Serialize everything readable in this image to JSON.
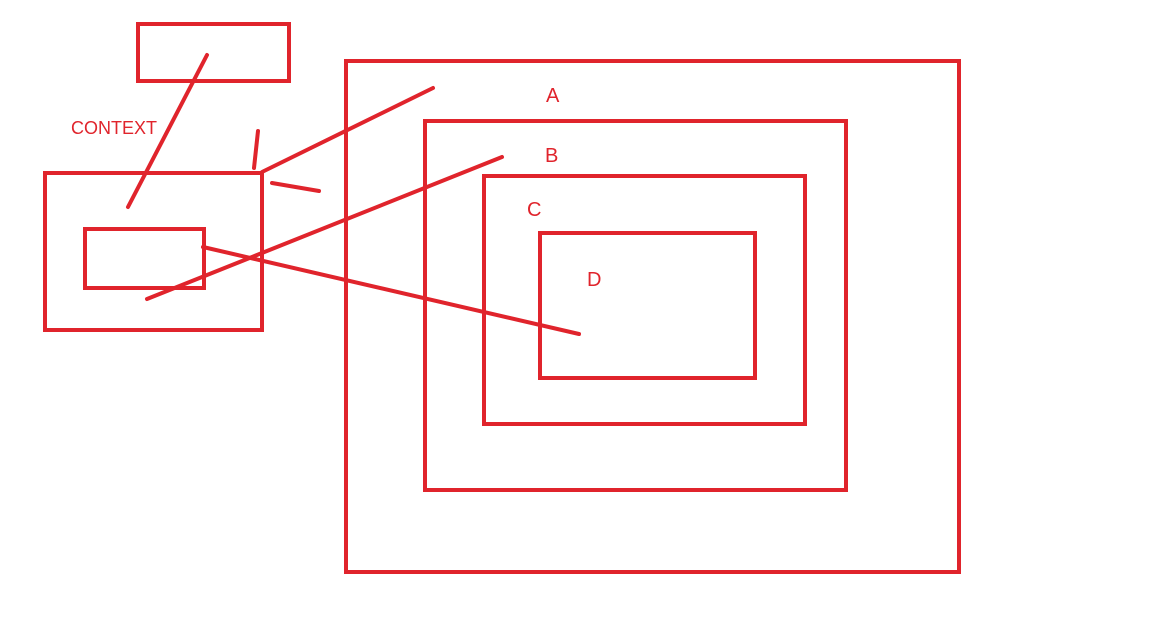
{
  "colors": {
    "ink": "#e0242c",
    "background": "#ffffff"
  },
  "labels": {
    "context": "CONTEXT",
    "a": "A",
    "b": "B",
    "c": "C",
    "d": "D"
  }
}
